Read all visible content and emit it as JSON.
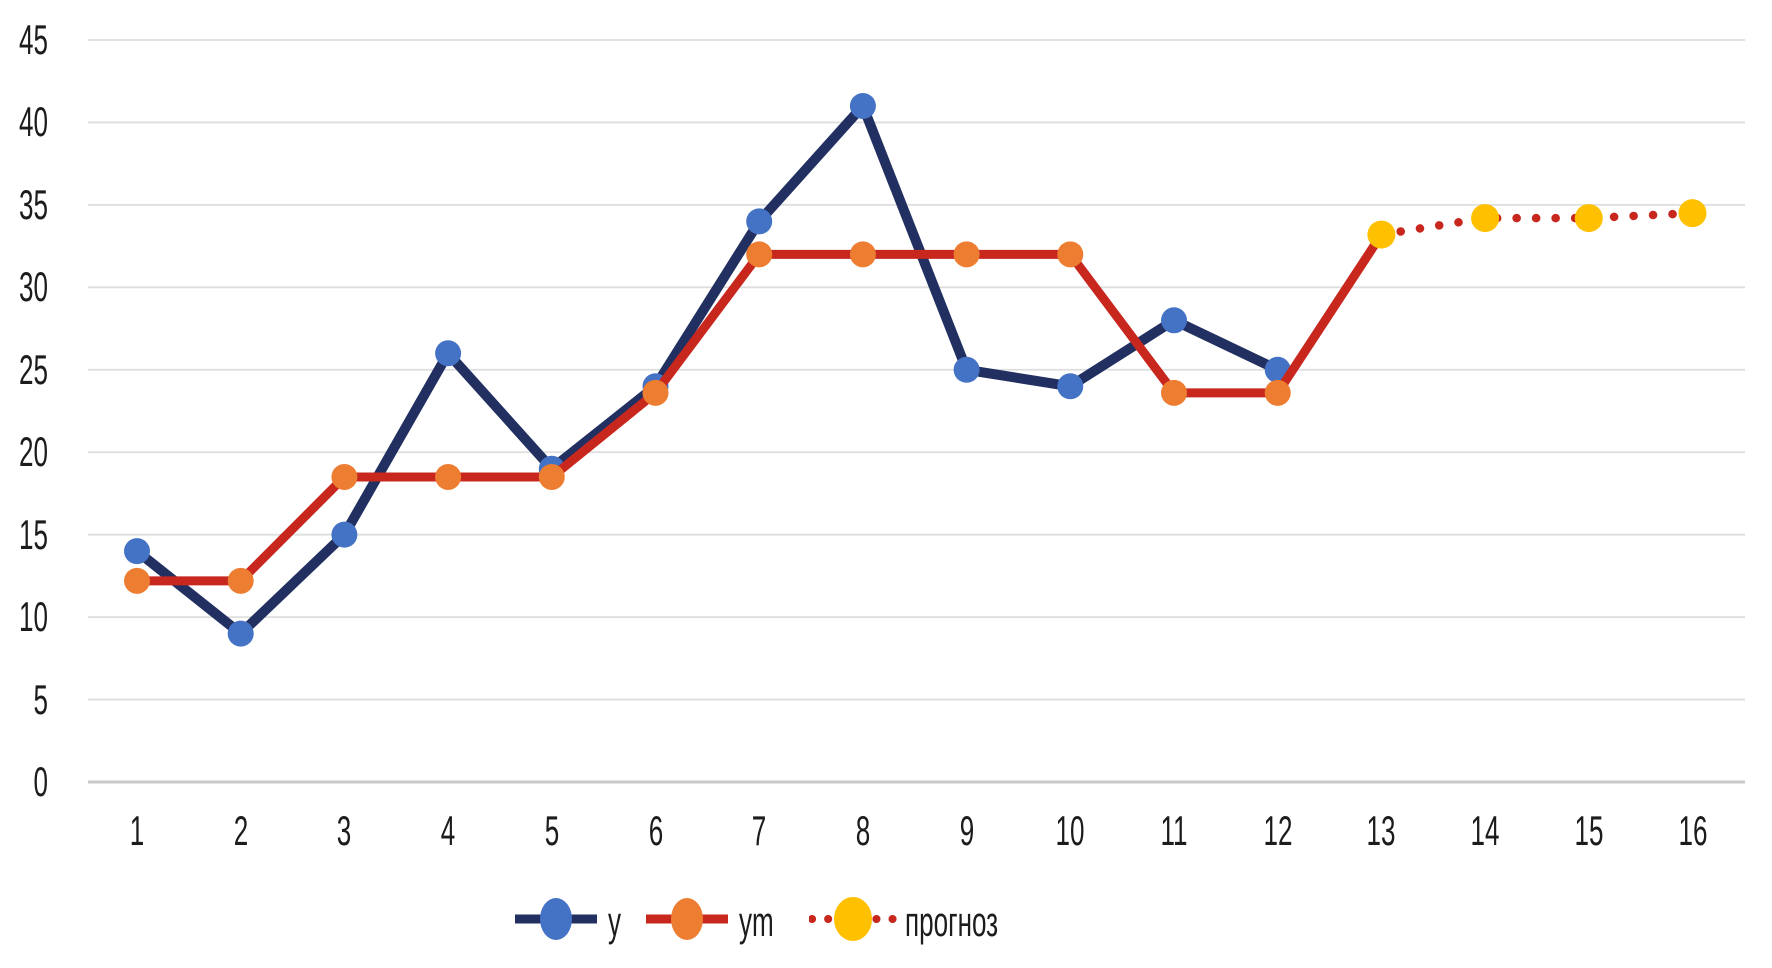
{
  "chart_data": {
    "type": "line",
    "title": "",
    "xlabel": "",
    "ylabel": "",
    "categories": [
      1,
      2,
      3,
      4,
      5,
      6,
      7,
      8,
      9,
      10,
      11,
      12,
      13,
      14,
      15,
      16
    ],
    "ylim": [
      0,
      45
    ],
    "yticks": [
      0,
      5,
      10,
      15,
      20,
      25,
      30,
      35,
      40,
      45
    ],
    "grid": "horizontal",
    "legend_position": "bottom",
    "background_color": "#ffffff",
    "gridline_color": "#dedede",
    "axis_line_color": "#c9c9c9",
    "tick_label_color": "#1c1c1c",
    "series": [
      {
        "name": "y",
        "style": "solid",
        "line_color": "#223061",
        "marker_color": "#4472c4",
        "x": [
          1,
          2,
          3,
          4,
          5,
          6,
          7,
          8,
          9,
          10,
          11,
          12
        ],
        "values": [
          14,
          9,
          15,
          26,
          19,
          24,
          34,
          41,
          25,
          24,
          28,
          25
        ]
      },
      {
        "name": "ym",
        "style": "solid",
        "line_color": "#c8271e",
        "marker_color": "#ed7d31",
        "x": [
          1,
          2,
          3,
          4,
          5,
          6,
          7,
          8,
          9,
          10,
          11,
          12
        ],
        "values": [
          12.2,
          12.2,
          18.5,
          18.5,
          18.5,
          23.6,
          32,
          32,
          32,
          32,
          23.6,
          23.6
        ]
      },
      {
        "name": "прогноз",
        "style": "dotted",
        "line_color": "#c8271e",
        "marker_color": "#ffc000",
        "solid_connector_from_previous_series": true,
        "x": [
          13,
          14,
          15,
          16
        ],
        "values": [
          33.2,
          34.2,
          34.2,
          34.5
        ]
      }
    ]
  }
}
